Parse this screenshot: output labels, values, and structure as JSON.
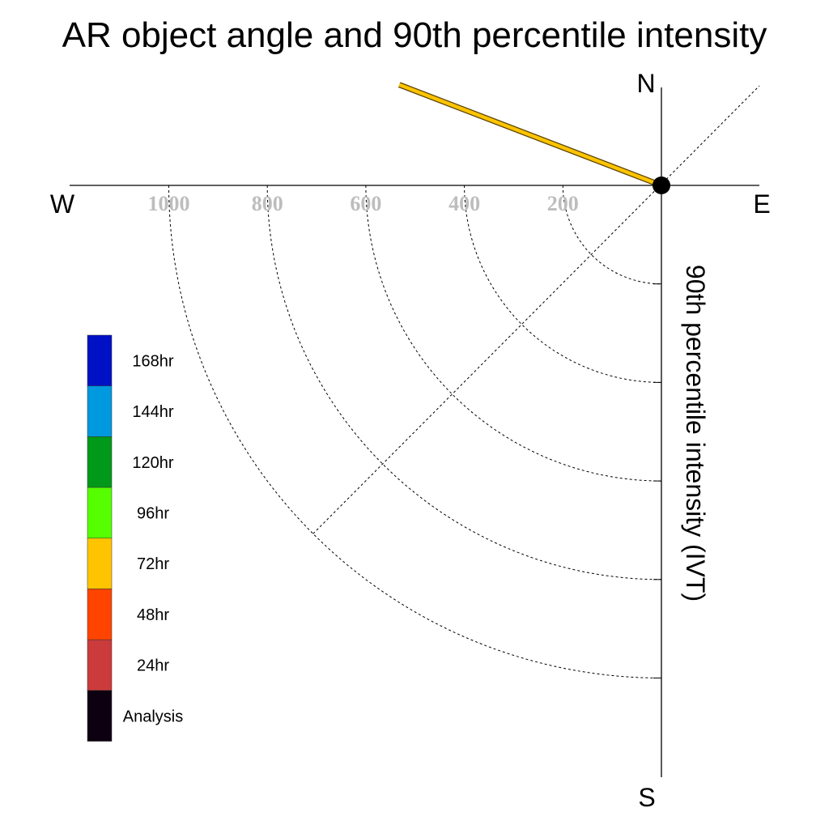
{
  "chart_data": {
    "type": "polar-vector",
    "title": "AR object angle and 90th percentile intensity",
    "ylabel": "90th percentile intensity (IVT)",
    "compass": {
      "north": "N",
      "south": "S",
      "east": "E",
      "west": "W"
    },
    "radial_ticks": [
      "200",
      "400",
      "600",
      "800",
      "1000"
    ],
    "radial_values": [
      200,
      400,
      600,
      800,
      1000
    ],
    "rlim": [
      0,
      1200
    ],
    "grid": true,
    "legend_position": "left",
    "legend": [
      {
        "label": "168hr",
        "color": "#0010c4"
      },
      {
        "label": "144hr",
        "color": "#0098de"
      },
      {
        "label": "120hr",
        "color": "#00991a"
      },
      {
        "label": "96hr",
        "color": "#55ff00"
      },
      {
        "label": "72hr",
        "color": "#ffc400"
      },
      {
        "label": "48hr",
        "color": "#ff4400"
      },
      {
        "label": "24hr",
        "color": "#cc3b3b"
      },
      {
        "label": "Analysis",
        "color": "#0d0010"
      }
    ],
    "series": [
      {
        "name": "72hr",
        "color": "#ffc400",
        "angle_deg": 291,
        "intensity": 570
      }
    ]
  }
}
